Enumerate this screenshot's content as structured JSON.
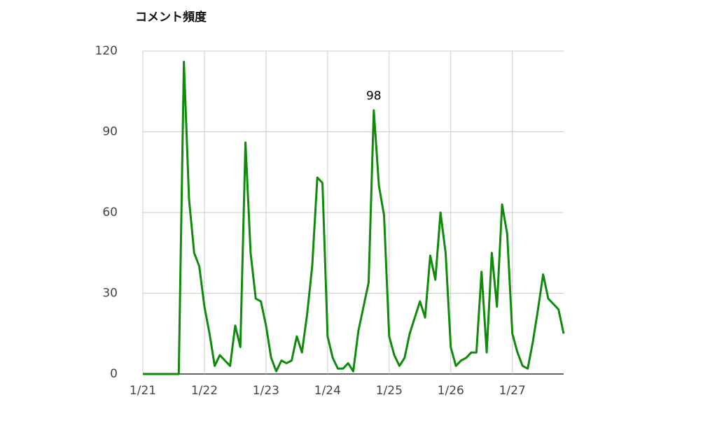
{
  "chart_data": {
    "type": "line",
    "title": "コメント頻度",
    "categories": [
      "1/21",
      null,
      null,
      null,
      null,
      null,
      null,
      null,
      null,
      null,
      null,
      null,
      "1/22",
      null,
      null,
      null,
      null,
      null,
      null,
      null,
      null,
      null,
      null,
      null,
      "1/23",
      null,
      null,
      null,
      null,
      null,
      null,
      null,
      null,
      null,
      null,
      null,
      "1/24",
      null,
      null,
      null,
      null,
      null,
      null,
      null,
      null,
      null,
      null,
      null,
      "1/25",
      null,
      null,
      null,
      null,
      null,
      null,
      null,
      null,
      null,
      null,
      null,
      "1/26",
      null,
      null,
      null,
      null,
      null,
      null,
      null,
      null,
      null,
      null,
      null,
      "1/27",
      null,
      null,
      null,
      null,
      null,
      null,
      null,
      null,
      null,
      null
    ],
    "series": [
      {
        "name": null,
        "color": "#0f8a0a",
        "values": [
          0,
          0,
          0,
          0,
          0,
          0,
          0,
          0,
          116,
          65,
          45,
          40,
          25,
          15,
          3,
          7,
          5,
          3,
          18,
          10,
          86,
          45,
          28,
          27,
          18,
          6,
          1,
          5,
          4,
          5,
          14,
          8,
          22,
          40,
          73,
          71,
          14,
          6,
          2,
          2,
          4,
          1,
          16,
          25,
          34,
          98,
          70,
          59,
          14,
          7,
          3,
          6,
          15,
          21,
          27,
          21,
          44,
          35,
          60,
          45,
          10,
          3,
          5,
          6,
          8,
          8,
          38,
          8,
          45,
          25,
          63,
          52,
          15,
          8,
          3,
          2,
          12,
          24,
          37,
          28,
          26,
          24,
          15
        ],
        "value_labels": [
          null,
          null,
          null,
          null,
          null,
          null,
          null,
          null,
          null,
          null,
          null,
          null,
          null,
          null,
          null,
          null,
          null,
          null,
          null,
          null,
          null,
          null,
          null,
          null,
          null,
          null,
          null,
          null,
          null,
          null,
          null,
          null,
          null,
          null,
          null,
          null,
          null,
          null,
          null,
          null,
          null,
          null,
          null,
          null,
          null,
          "98",
          null,
          null,
          null,
          null,
          null,
          null,
          null,
          null,
          null,
          null,
          null,
          null,
          null,
          null,
          null,
          null,
          null,
          null,
          null,
          null,
          null,
          null,
          null,
          null,
          null,
          null,
          null,
          null,
          null,
          null,
          null,
          null,
          null,
          null,
          null,
          null,
          null
        ]
      }
    ],
    "ylim": [
      0,
      120
    ],
    "yticks": [
      0,
      30,
      60,
      90,
      120
    ],
    "grid": true
  }
}
